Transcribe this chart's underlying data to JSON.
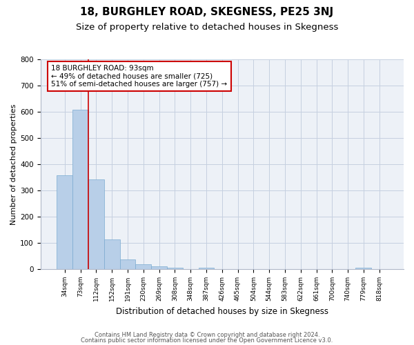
{
  "title": "18, BURGHLEY ROAD, SKEGNESS, PE25 3NJ",
  "subtitle": "Size of property relative to detached houses in Skegness",
  "xlabel": "Distribution of detached houses by size in Skegness",
  "ylabel": "Number of detached properties",
  "bar_labels": [
    "34sqm",
    "73sqm",
    "112sqm",
    "152sqm",
    "191sqm",
    "230sqm",
    "269sqm",
    "308sqm",
    "348sqm",
    "387sqm",
    "426sqm",
    "465sqm",
    "504sqm",
    "544sqm",
    "583sqm",
    "622sqm",
    "661sqm",
    "700sqm",
    "740sqm",
    "779sqm",
    "818sqm"
  ],
  "bar_values": [
    358,
    610,
    343,
    113,
    38,
    18,
    10,
    5,
    0,
    5,
    0,
    0,
    0,
    0,
    0,
    0,
    0,
    0,
    0,
    5,
    0
  ],
  "bar_color": "#b8cfe8",
  "bar_edge_color": "#7aaad0",
  "ylim": [
    0,
    800
  ],
  "yticks": [
    0,
    100,
    200,
    300,
    400,
    500,
    600,
    700,
    800
  ],
  "vline_color": "#cc0000",
  "annotation_title": "18 BURGHLEY ROAD: 93sqm",
  "annotation_line1": "← 49% of detached houses are smaller (725)",
  "annotation_line2": "51% of semi-detached houses are larger (757) →",
  "annotation_box_color": "#cc0000",
  "footer_line1": "Contains HM Land Registry data © Crown copyright and database right 2024.",
  "footer_line2": "Contains public sector information licensed under the Open Government Licence v3.0.",
  "bg_color": "#edf1f7",
  "grid_color": "#c5cfe0",
  "title_fontsize": 11,
  "subtitle_fontsize": 9.5
}
